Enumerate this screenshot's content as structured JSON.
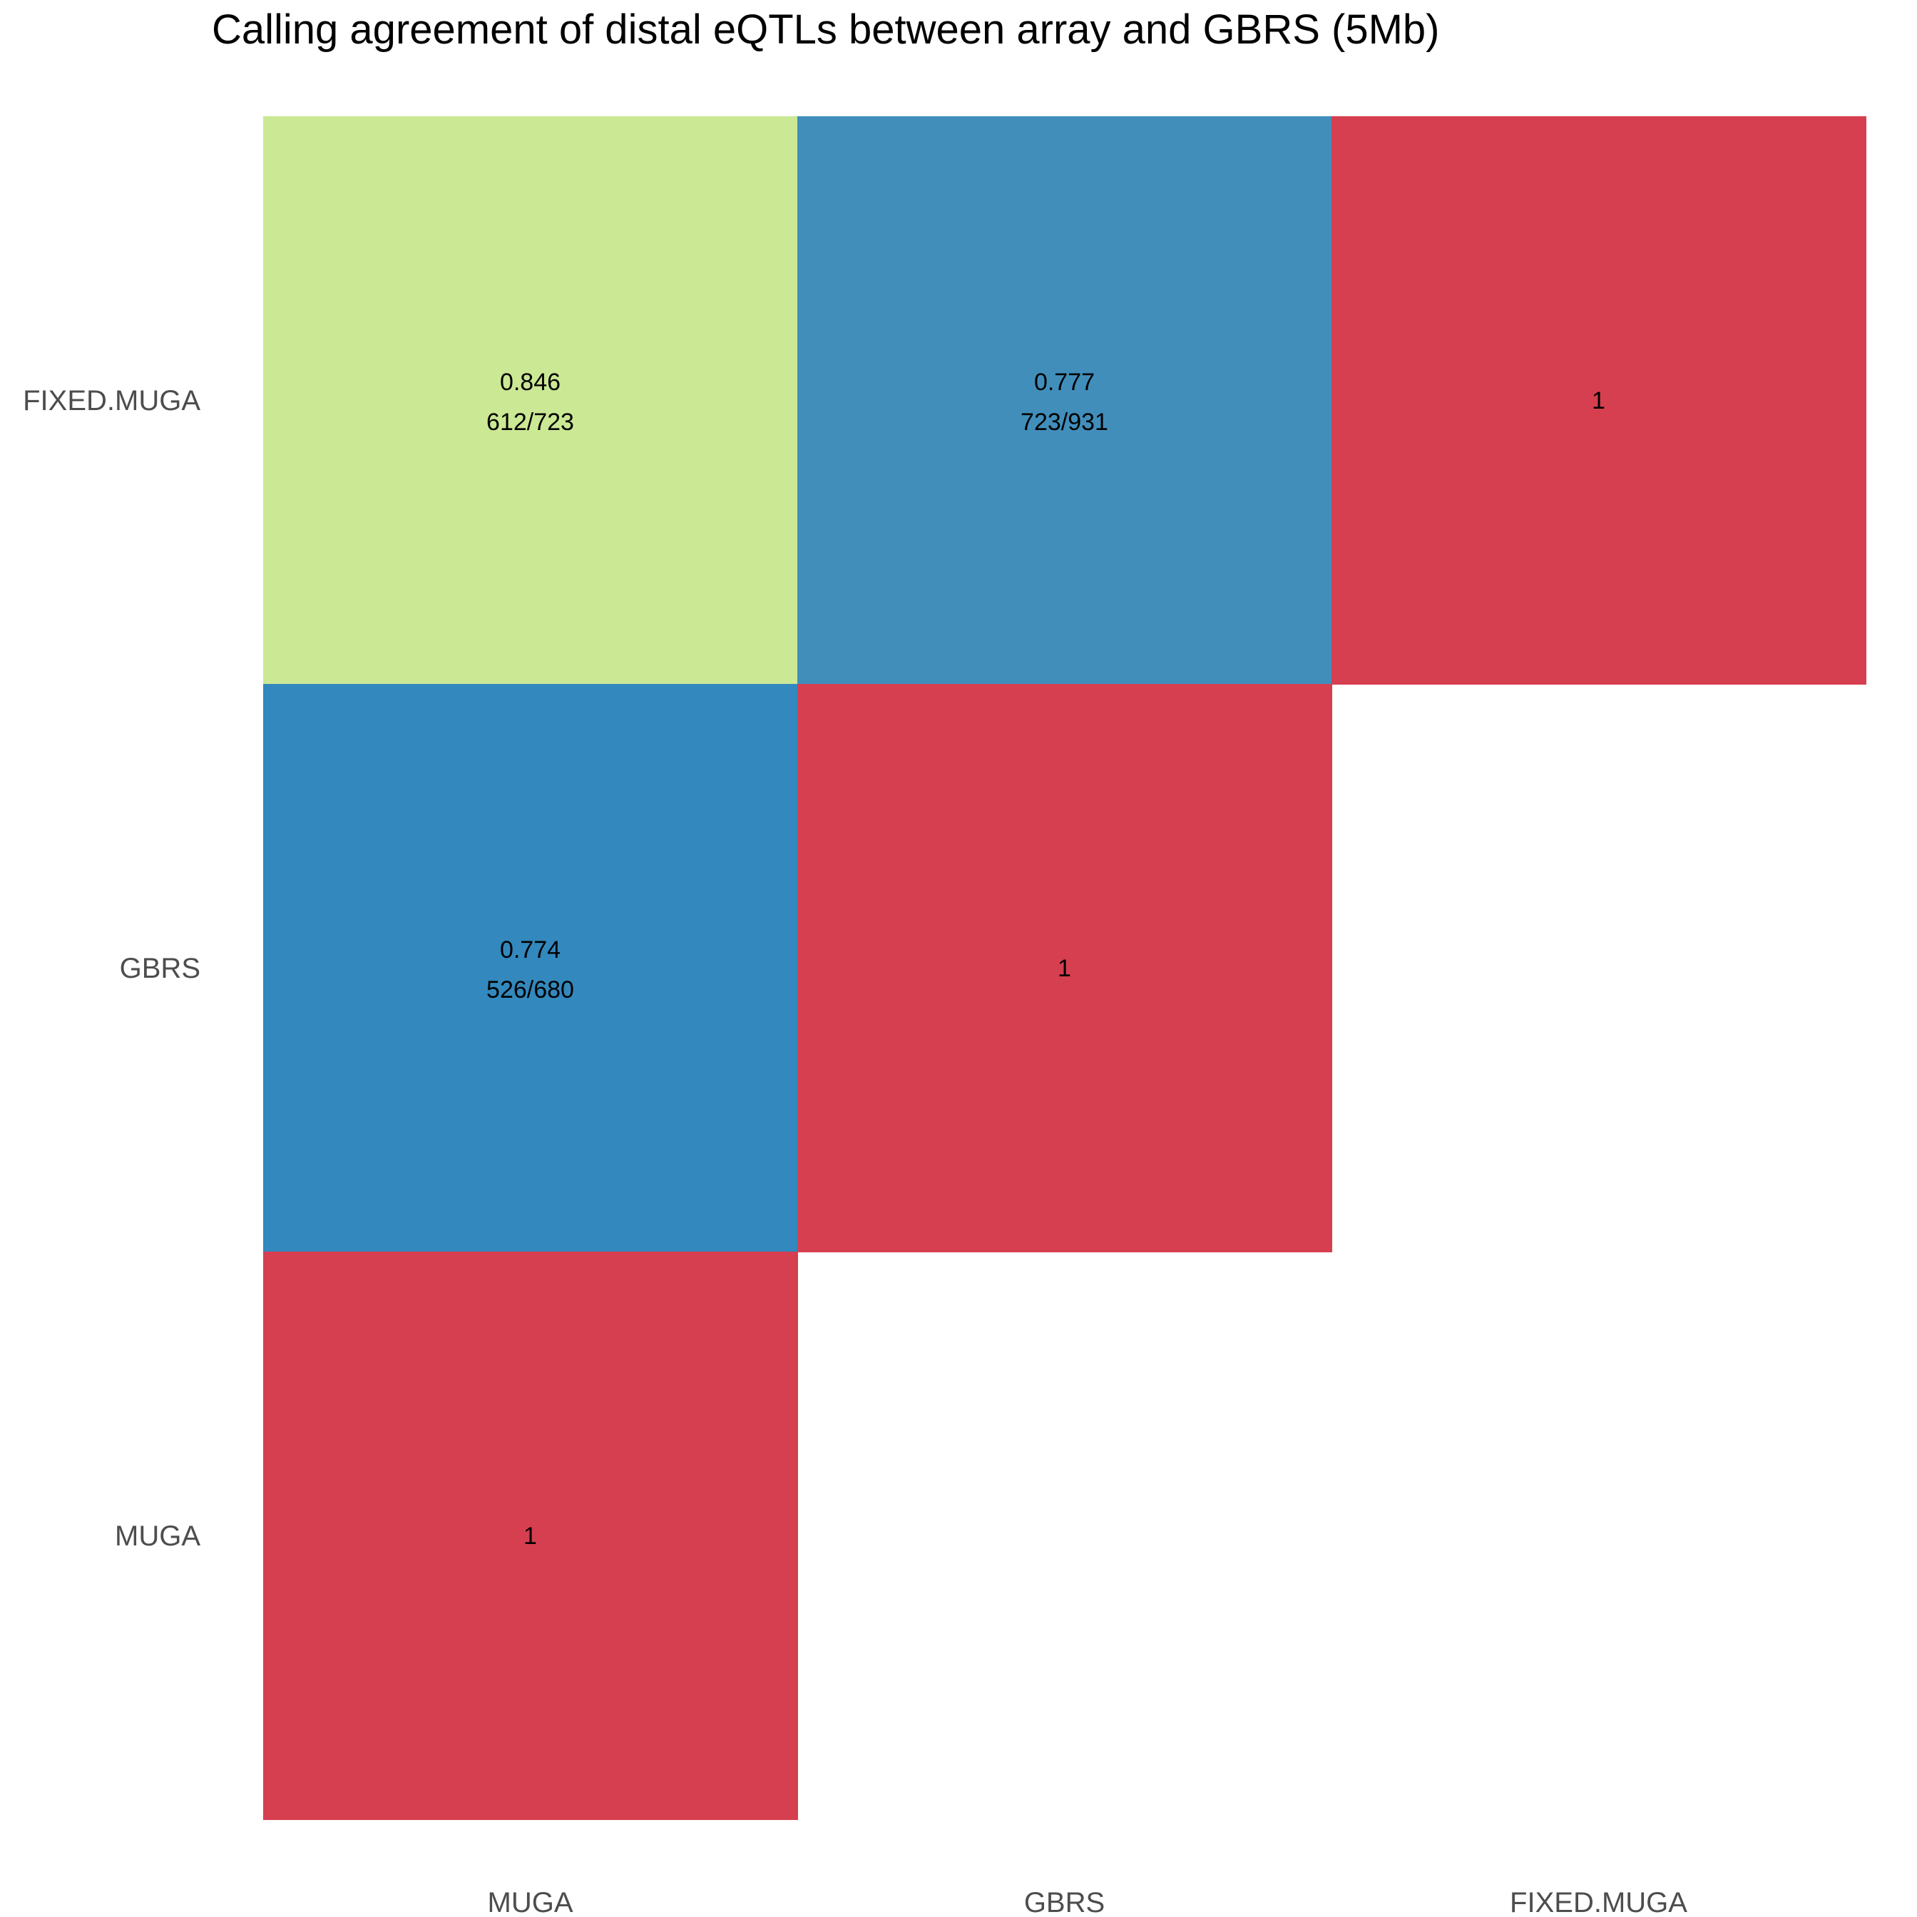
{
  "chart_data": {
    "type": "heatmap",
    "title": "Calling agreement of distal eQTLs between array and GBRS (5Mb)",
    "x_categories": [
      "MUGA",
      "GBRS",
      "FIXED.MUGA"
    ],
    "y_categories": [
      "FIXED.MUGA",
      "GBRS",
      "MUGA"
    ],
    "cells": [
      {
        "x": "MUGA",
        "y": "FIXED.MUGA",
        "value": 0.846,
        "label": "0.846",
        "sublabel": "612/723",
        "color": "#cbe894"
      },
      {
        "x": "GBRS",
        "y": "FIXED.MUGA",
        "value": 0.777,
        "label": "0.777",
        "sublabel": "723/931",
        "color": "#418ebb"
      },
      {
        "x": "FIXED.MUGA",
        "y": "FIXED.MUGA",
        "value": 1,
        "label": "1",
        "sublabel": "",
        "color": "#d63f50"
      },
      {
        "x": "MUGA",
        "y": "GBRS",
        "value": 0.774,
        "label": "0.774",
        "sublabel": "526/680",
        "color": "#3388bd"
      },
      {
        "x": "GBRS",
        "y": "GBRS",
        "value": 1,
        "label": "1",
        "sublabel": "",
        "color": "#d63f50"
      },
      {
        "x": "MUGA",
        "y": "MUGA",
        "value": 1,
        "label": "1",
        "sublabel": "",
        "color": "#d63f50"
      }
    ],
    "legend": "none",
    "grid": false
  }
}
